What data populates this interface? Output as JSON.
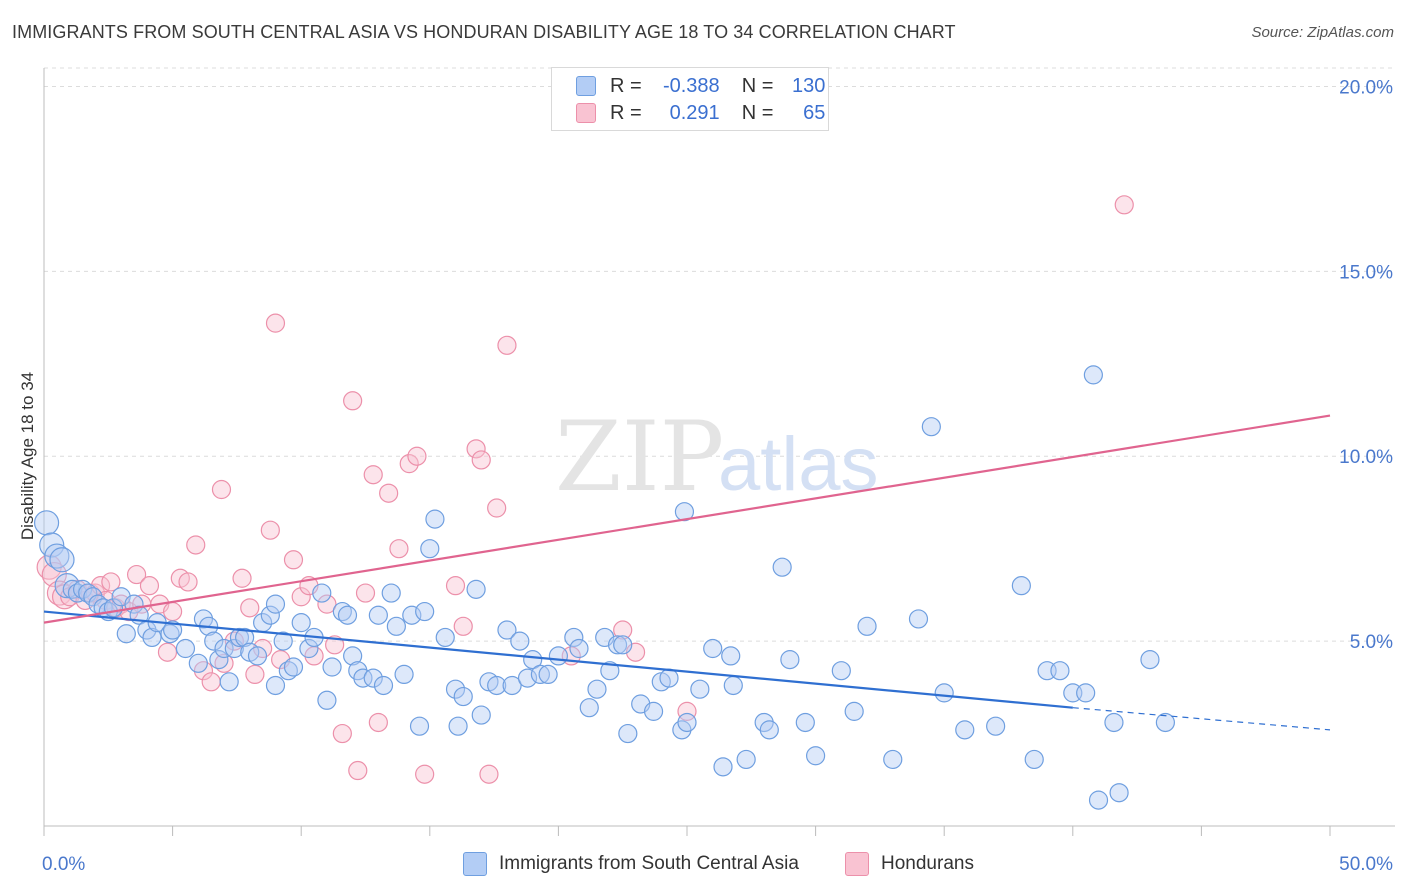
{
  "title": "IMMIGRANTS FROM SOUTH CENTRAL ASIA VS HONDURAN DISABILITY AGE 18 TO 34 CORRELATION CHART",
  "source": "Source: ZipAtlas.com",
  "watermark": {
    "zip": "ZIP",
    "atlas": "atlas"
  },
  "legend_top": {
    "r_label": "R =",
    "n_label": "N =",
    "blue": {
      "r": "-0.388",
      "n": "130"
    },
    "pink": {
      "r": "0.291",
      "n": "65"
    }
  },
  "colors": {
    "blue": "#6f9fe0",
    "blue_line": "#2f6fd1",
    "pink": "#ec90aa",
    "pink_line": "#e0648f",
    "grid": "#dcdcdc",
    "tick_label": "#4a78cc"
  },
  "chart_data": {
    "type": "scatter",
    "xlabel": "",
    "ylabel": "Disability Age 18 to 34",
    "xlim": [
      0,
      50
    ],
    "ylim": [
      0,
      20.5
    ],
    "x_tick_labels": [
      "0.0%",
      "50.0%"
    ],
    "y_ticks": [
      5,
      10,
      15,
      20
    ],
    "y_tick_labels": [
      "5.0%",
      "10.0%",
      "15.0%",
      "20.0%"
    ],
    "grid": true,
    "legend": "bottom",
    "series": [
      {
        "name": "Immigrants from South Central Asia",
        "color": "#6f9fe0",
        "trend": {
          "x": [
            0,
            40
          ],
          "y": [
            5.8,
            3.2
          ],
          "dashed_to": [
            50,
            2.6
          ]
        },
        "points": [
          [
            0.1,
            8.2
          ],
          [
            0.3,
            7.6
          ],
          [
            0.5,
            7.3
          ],
          [
            0.7,
            7.2
          ],
          [
            0.9,
            6.5
          ],
          [
            1.1,
            6.4
          ],
          [
            1.3,
            6.3
          ],
          [
            1.5,
            6.4
          ],
          [
            1.7,
            6.3
          ],
          [
            1.9,
            6.2
          ],
          [
            2.1,
            6.0
          ],
          [
            2.3,
            5.9
          ],
          [
            2.5,
            5.8
          ],
          [
            2.7,
            5.9
          ],
          [
            3.0,
            6.2
          ],
          [
            3.2,
            5.2
          ],
          [
            3.5,
            6.0
          ],
          [
            3.7,
            5.7
          ],
          [
            4.0,
            5.3
          ],
          [
            4.2,
            5.1
          ],
          [
            4.4,
            5.5
          ],
          [
            4.9,
            5.2
          ],
          [
            5.0,
            5.3
          ],
          [
            5.5,
            4.8
          ],
          [
            6.0,
            4.4
          ],
          [
            6.2,
            5.6
          ],
          [
            6.4,
            5.4
          ],
          [
            6.6,
            5.0
          ],
          [
            6.8,
            4.5
          ],
          [
            7.0,
            4.8
          ],
          [
            7.2,
            3.9
          ],
          [
            7.4,
            4.8
          ],
          [
            7.6,
            5.1
          ],
          [
            7.8,
            5.1
          ],
          [
            8.0,
            4.7
          ],
          [
            8.3,
            4.6
          ],
          [
            8.5,
            5.5
          ],
          [
            8.8,
            5.7
          ],
          [
            9.0,
            6.0
          ],
          [
            9.3,
            5.0
          ],
          [
            9.5,
            4.2
          ],
          [
            9.7,
            4.3
          ],
          [
            10.0,
            5.5
          ],
          [
            10.3,
            4.8
          ],
          [
            10.5,
            5.1
          ],
          [
            10.8,
            6.3
          ],
          [
            11.0,
            3.4
          ],
          [
            11.2,
            4.3
          ],
          [
            11.6,
            5.8
          ],
          [
            11.8,
            5.7
          ],
          [
            12.0,
            4.6
          ],
          [
            12.2,
            4.2
          ],
          [
            12.4,
            4.0
          ],
          [
            12.8,
            4.0
          ],
          [
            13.0,
            5.7
          ],
          [
            13.2,
            3.8
          ],
          [
            13.5,
            6.3
          ],
          [
            13.7,
            5.4
          ],
          [
            14.0,
            4.1
          ],
          [
            14.3,
            5.7
          ],
          [
            14.6,
            2.7
          ],
          [
            14.8,
            5.8
          ],
          [
            15.0,
            7.5
          ],
          [
            15.2,
            8.3
          ],
          [
            15.6,
            5.1
          ],
          [
            16.0,
            3.7
          ],
          [
            16.3,
            3.5
          ],
          [
            16.8,
            6.4
          ],
          [
            17.0,
            3.0
          ],
          [
            17.3,
            3.9
          ],
          [
            17.6,
            3.8
          ],
          [
            18.0,
            5.3
          ],
          [
            18.2,
            3.8
          ],
          [
            18.5,
            5.0
          ],
          [
            18.8,
            4.0
          ],
          [
            19.0,
            4.5
          ],
          [
            19.3,
            4.1
          ],
          [
            19.6,
            4.1
          ],
          [
            20.0,
            4.6
          ],
          [
            20.6,
            5.1
          ],
          [
            20.8,
            4.8
          ],
          [
            21.2,
            3.2
          ],
          [
            21.5,
            3.7
          ],
          [
            21.8,
            5.1
          ],
          [
            22.0,
            4.2
          ],
          [
            22.3,
            4.9
          ],
          [
            22.5,
            4.9
          ],
          [
            22.7,
            2.5
          ],
          [
            23.2,
            3.3
          ],
          [
            23.7,
            3.1
          ],
          [
            24.0,
            3.9
          ],
          [
            24.3,
            4.0
          ],
          [
            24.8,
            2.6
          ],
          [
            25.0,
            2.8
          ],
          [
            25.5,
            3.7
          ],
          [
            26.0,
            4.8
          ],
          [
            26.4,
            1.6
          ],
          [
            26.7,
            4.6
          ],
          [
            26.8,
            3.8
          ],
          [
            27.3,
            1.8
          ],
          [
            28.0,
            2.8
          ],
          [
            28.2,
            2.6
          ],
          [
            28.7,
            7.0
          ],
          [
            29.0,
            4.5
          ],
          [
            29.6,
            2.8
          ],
          [
            30.0,
            1.9
          ],
          [
            31.0,
            4.2
          ],
          [
            31.5,
            3.1
          ],
          [
            32.0,
            5.4
          ],
          [
            33.0,
            1.8
          ],
          [
            34.0,
            5.6
          ],
          [
            34.5,
            10.8
          ],
          [
            35.0,
            3.6
          ],
          [
            35.8,
            2.6
          ],
          [
            37.0,
            2.7
          ],
          [
            38.0,
            6.5
          ],
          [
            38.5,
            1.8
          ],
          [
            39.0,
            4.2
          ],
          [
            39.5,
            4.2
          ],
          [
            40.0,
            3.6
          ],
          [
            40.5,
            3.6
          ],
          [
            40.8,
            12.2
          ],
          [
            41.0,
            0.7
          ],
          [
            41.6,
            2.8
          ],
          [
            41.8,
            0.9
          ],
          [
            43.0,
            4.5
          ],
          [
            43.6,
            2.8
          ],
          [
            24.9,
            8.5
          ],
          [
            16.1,
            2.7
          ],
          [
            9.0,
            3.8
          ]
        ]
      },
      {
        "name": "Hondurans",
        "color": "#ec90aa",
        "trend": {
          "x": [
            0,
            50
          ],
          "y": [
            5.5,
            11.1
          ]
        },
        "points": [
          [
            0.2,
            7.0
          ],
          [
            0.4,
            6.8
          ],
          [
            0.6,
            6.3
          ],
          [
            0.8,
            6.2
          ],
          [
            1.0,
            6.2
          ],
          [
            1.3,
            6.4
          ],
          [
            1.6,
            6.1
          ],
          [
            1.8,
            6.3
          ],
          [
            2.0,
            6.3
          ],
          [
            2.2,
            6.5
          ],
          [
            2.4,
            6.1
          ],
          [
            2.6,
            6.6
          ],
          [
            2.8,
            5.9
          ],
          [
            3.0,
            6.0
          ],
          [
            3.3,
            5.8
          ],
          [
            3.6,
            6.8
          ],
          [
            3.8,
            6.0
          ],
          [
            4.1,
            6.5
          ],
          [
            4.5,
            6.0
          ],
          [
            4.8,
            4.7
          ],
          [
            5.0,
            5.8
          ],
          [
            5.3,
            6.7
          ],
          [
            5.6,
            6.6
          ],
          [
            5.9,
            7.6
          ],
          [
            6.2,
            4.2
          ],
          [
            6.5,
            3.9
          ],
          [
            6.9,
            9.1
          ],
          [
            7.0,
            4.4
          ],
          [
            7.4,
            5.0
          ],
          [
            7.7,
            6.7
          ],
          [
            8.0,
            5.9
          ],
          [
            8.2,
            4.1
          ],
          [
            8.5,
            4.8
          ],
          [
            8.8,
            8.0
          ],
          [
            9.0,
            13.6
          ],
          [
            9.2,
            4.5
          ],
          [
            9.7,
            7.2
          ],
          [
            10.0,
            6.2
          ],
          [
            10.3,
            6.5
          ],
          [
            10.5,
            4.6
          ],
          [
            11.0,
            6.0
          ],
          [
            11.3,
            4.9
          ],
          [
            11.6,
            2.5
          ],
          [
            12.0,
            11.5
          ],
          [
            12.2,
            1.5
          ],
          [
            12.5,
            6.3
          ],
          [
            12.8,
            9.5
          ],
          [
            13.0,
            2.8
          ],
          [
            13.4,
            9.0
          ],
          [
            13.8,
            7.5
          ],
          [
            14.2,
            9.8
          ],
          [
            14.5,
            10.0
          ],
          [
            14.8,
            1.4
          ],
          [
            16.0,
            6.5
          ],
          [
            16.3,
            5.4
          ],
          [
            16.8,
            10.2
          ],
          [
            17.0,
            9.9
          ],
          [
            17.3,
            1.4
          ],
          [
            17.6,
            8.6
          ],
          [
            18.0,
            13.0
          ],
          [
            20.5,
            4.6
          ],
          [
            22.5,
            5.3
          ],
          [
            23.0,
            4.7
          ],
          [
            25.0,
            3.1
          ],
          [
            42.0,
            16.8
          ]
        ]
      }
    ]
  }
}
